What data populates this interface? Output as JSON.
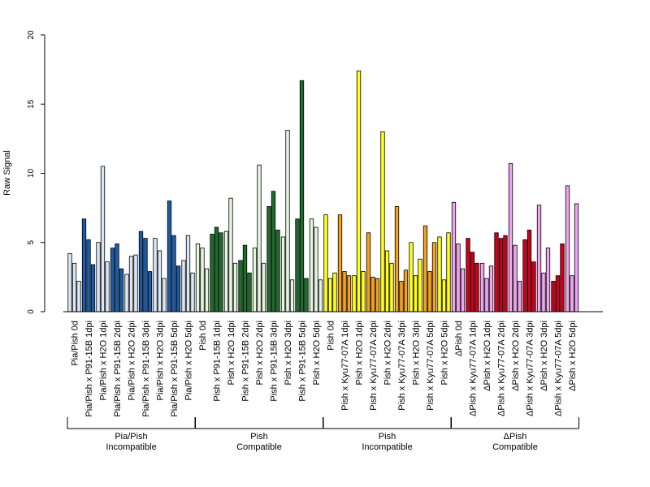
{
  "chart_data": {
    "type": "bar",
    "ylabel": "Raw Signal",
    "xlabel": "",
    "ylim": [
      0,
      20
    ],
    "yticks": [
      "0",
      "5",
      "10",
      "15",
      "20"
    ],
    "grid": false,
    "bars_per_category": 3,
    "categories": [
      "Pia/Pish 0d",
      "Pia/Pish x P91-15B 1dpi",
      "Pia/Pish x H2O 1dpi",
      "Pia/Pish x P91-15B 2dpi",
      "Pia/Pish x H2O 2dpi",
      "Pia/Pish x P91-15B 3dpi",
      "Pia/Pish x H2O 3dpi",
      "Pia/Pish x P91-15B 5dpi",
      "Pia/Pish x H2O 5dpi",
      "Pish 0d",
      "Pish x P91-15B 1dpi",
      "Pish x H2O 1dpi",
      "Pish x P91-15B 2dpi",
      "Pish x H2O 2dpi",
      "Pish x P91-15B 3dpi",
      "Pish x H2O 3dpi",
      "Pish x P91-15B 5dpi",
      "Pish x H2O 5dpi",
      "Pish 0d",
      "Pish x Kyu77-07A 1dpi",
      "Pish x H2O 1dpi",
      "Pish x Kyu77-07A 2dpi",
      "Pish x H2O 2dpi",
      "Pish x Kyu77-07A 3dpi",
      "Pish x H2O 3dpi",
      "Pish x Kyu77-07A 5dpi",
      "Pish x H2O 5dpi",
      "ΔPish 0d",
      "ΔPish x Kyu77-07A 1dpi",
      "ΔPish x H2O 1dpi",
      "ΔPish x Kyu77-07A 2dpi",
      "ΔPish x H2O 2dpi",
      "ΔPish x Kyu77-07A 3dpi",
      "ΔPish x H2O 3dpi",
      "ΔPish x Kyu77-07A 5dpi",
      "ΔPish x H2O 5dpi"
    ],
    "values": [
      [
        4.2,
        3.5,
        2.2
      ],
      [
        6.7,
        5.2,
        3.4
      ],
      [
        5.0,
        10.5,
        3.6
      ],
      [
        4.6,
        4.9,
        3.1
      ],
      [
        2.7,
        4.0,
        4.1
      ],
      [
        5.8,
        5.3,
        2.9
      ],
      [
        5.3,
        4.4,
        2.4
      ],
      [
        8.0,
        5.5,
        3.3
      ],
      [
        3.7,
        5.5,
        2.8
      ],
      [
        4.9,
        4.6,
        3.1
      ],
      [
        5.6,
        6.1,
        5.7
      ],
      [
        5.8,
        8.2,
        3.5
      ],
      [
        3.7,
        4.8,
        2.8
      ],
      [
        4.6,
        10.6,
        3.5
      ],
      [
        7.6,
        8.7,
        5.9
      ],
      [
        5.4,
        13.1,
        2.3
      ],
      [
        6.7,
        16.7,
        2.4
      ],
      [
        6.7,
        6.1,
        2.3
      ],
      [
        7.0,
        2.4,
        2.8
      ],
      [
        7.0,
        2.9,
        2.6
      ],
      [
        2.6,
        17.4,
        2.9
      ],
      [
        5.7,
        2.5,
        2.4
      ],
      [
        13.0,
        4.4,
        3.5
      ],
      [
        7.6,
        2.2,
        3.0
      ],
      [
        5.0,
        2.6,
        3.8
      ],
      [
        6.2,
        2.9,
        5.0
      ],
      [
        5.4,
        2.3,
        5.7
      ],
      [
        7.9,
        4.9,
        3.1
      ],
      [
        5.3,
        4.3,
        3.5
      ],
      [
        3.5,
        2.4,
        3.3
      ],
      [
        5.7,
        5.3,
        5.5
      ],
      [
        10.7,
        4.8,
        2.2
      ],
      [
        5.2,
        5.9,
        3.6
      ],
      [
        7.7,
        2.8,
        4.6
      ],
      [
        2.2,
        2.6,
        4.9
      ],
      [
        9.1,
        2.6,
        7.8
      ]
    ],
    "colors": [
      "#dbe6f4",
      "#1e5ca8",
      "#dbe6f4",
      "#1e5ca8",
      "#dbe6f4",
      "#1e5ca8",
      "#dbe6f4",
      "#1e5ca8",
      "#dbe6f4",
      "#e4f4df",
      "#1e6e2c",
      "#e4f4df",
      "#1e6e2c",
      "#e4f4df",
      "#1e6e2c",
      "#e4f4df",
      "#1e6e2c",
      "#e4f4df",
      "#ffff1a",
      "#f5a21f",
      "#ffff1a",
      "#f5a21f",
      "#ffff1a",
      "#f5a21f",
      "#ffff1a",
      "#f5a21f",
      "#ffff1a",
      "#f0a6ee",
      "#d0001a",
      "#f0a6ee",
      "#d0001a",
      "#f0a6ee",
      "#d0001a",
      "#f0a6ee",
      "#d0001a",
      "#f0a6ee"
    ],
    "groups": [
      {
        "line1": "Pia/Pish",
        "line2": "Incompatible",
        "start": 0,
        "end": 8
      },
      {
        "line1": "Pish",
        "line2": "Compatible",
        "start": 9,
        "end": 17
      },
      {
        "line1": "Pish",
        "line2": "Incompatible",
        "start": 18,
        "end": 26
      },
      {
        "line1": "ΔPish",
        "line2": "Compatible",
        "start": 27,
        "end": 35
      }
    ]
  }
}
